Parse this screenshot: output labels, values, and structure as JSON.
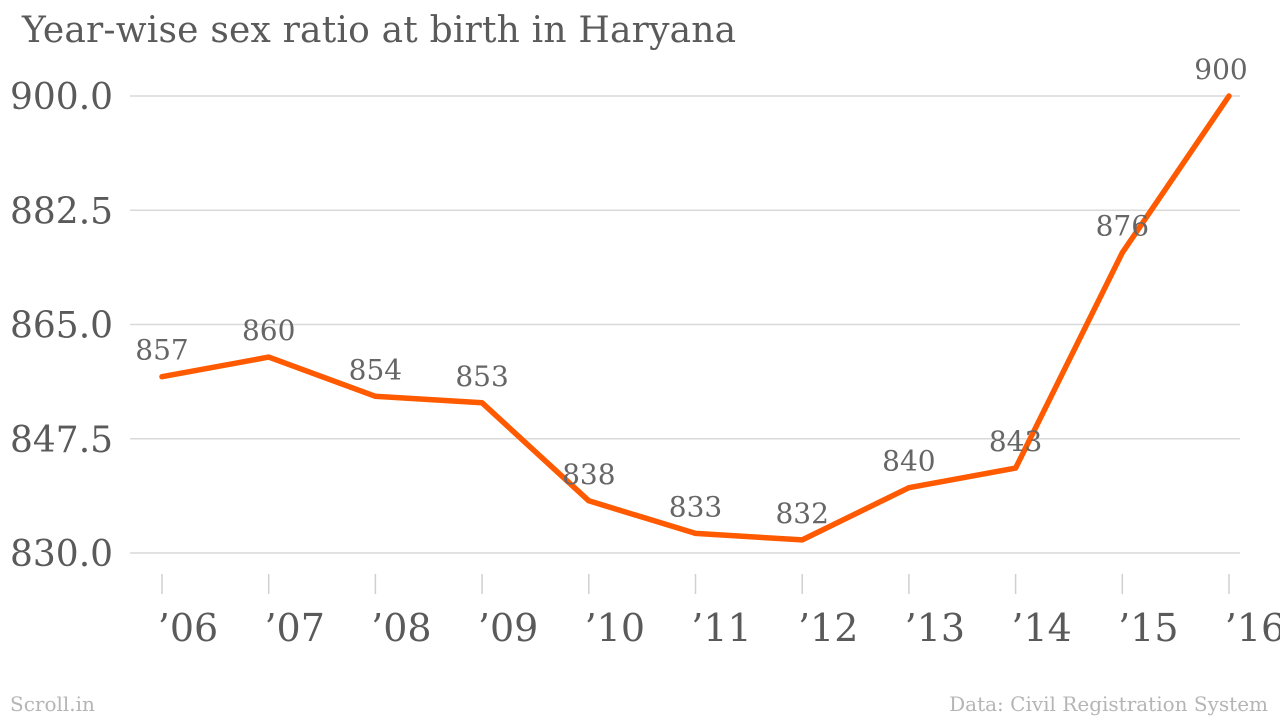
{
  "chart_data": {
    "type": "line",
    "title": "Year-wise sex ratio at birth in Haryana",
    "categories": [
      "’06",
      "’07",
      "’08",
      "’09",
      "’10",
      "’11",
      "’12",
      "’13",
      "’14",
      "’15",
      "’16"
    ],
    "series": [
      {
        "values": [
          857,
          860,
          854,
          853,
          838,
          833,
          832,
          840,
          843,
          876,
          900
        ],
        "data_labels": [
          "857",
          "860",
          "854",
          "853",
          "838",
          "833",
          "832",
          "840",
          "843",
          "876",
          "900"
        ]
      }
    ],
    "y_ticks": [
      830.0,
      847.5,
      865.0,
      882.5,
      900.0
    ],
    "y_tick_labels": [
      "830.0",
      "847.5",
      "865.0",
      "882.5",
      "900.0"
    ],
    "ylim": [
      830,
      900
    ],
    "xlabel": "",
    "ylabel": "",
    "grid": true,
    "legend": "none",
    "line_color": "#ff5a00"
  },
  "footer": {
    "brand": "Scroll.in",
    "source": "Data: Civil Registration System"
  }
}
